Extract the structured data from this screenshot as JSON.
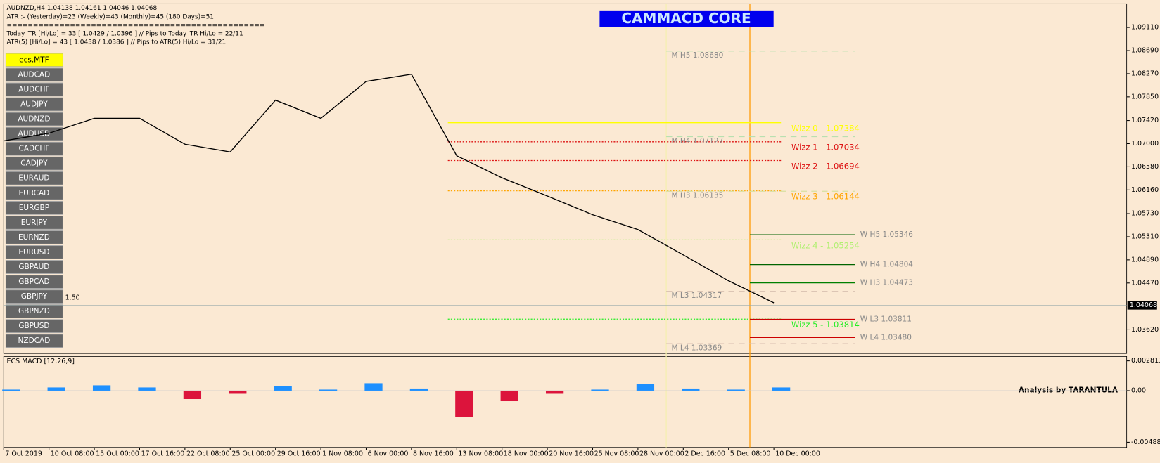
{
  "header": {
    "lines": [
      "AUDNZD,H4  1.04138 1.04161 1.04046 1.04068",
      "ATR :- (Yesterday)=23      (Weekly)=43      (Monthly)=45      (180 Days)=51",
      "=================================================",
      "Today_TR [Hi/Lo] = 33 [ 1.0429 / 1.0396 ]   // Pips to Today_TR Hi/Lo   = 22/11",
      "ATR(5)      [Hi/Lo] = 43 [ 1.0438 / 1.0386 ]   // Pips to ATR(5) Hi/Lo      = 31/21"
    ]
  },
  "title": "CAMMACD CORE",
  "symbols": [
    "ecs.MTF",
    "AUDCAD",
    "AUDCHF",
    "AUDJPY",
    "AUDNZD",
    "AUDUSD",
    "CADCHF",
    "CADJPY",
    "EURAUD",
    "EURCAD",
    "EURGBP",
    "EURJPY",
    "EURNZD",
    "EURUSD",
    "GBPAUD",
    "GBPCAD",
    "GBPJPY",
    "GBPNZD",
    "GBPUSD",
    "NZDCAD"
  ],
  "side_label": "1.50",
  "credit": "Analysis by TARANTULA",
  "chart_data": [
    {
      "type": "line",
      "color": "#000000",
      "categories": [
        "7 Oct 2019",
        "10 Oct 08:00",
        "15 Oct 00:00",
        "17 Oct 16:00",
        "22 Oct 08:00",
        "25 Oct 00:00",
        "29 Oct 16:00",
        "1 Nov 08:00",
        "6 Nov 00:00",
        "8 Nov 16:00",
        "13 Nov 08:00",
        "18 Nov 00:00",
        "20 Nov 16:00",
        "25 Nov 08:00",
        "28 Nov 00:00",
        "2 Dec 16:00",
        "5 Dec 08:00",
        "10 Dec 00:00"
      ],
      "values": [
        1.0705,
        1.0719,
        1.0746,
        1.0746,
        1.0699,
        1.0685,
        1.0779,
        1.0746,
        1.0813,
        1.0826,
        1.0678,
        1.0638,
        1.0605,
        1.0571,
        1.0544,
        1.0498,
        1.0451,
        1.0411
      ],
      "ylim": [
        1.0319,
        1.0954
      ],
      "yticks": [
        {
          "value": 1.0911,
          "label": "1.09110"
        },
        {
          "value": 1.0869,
          "label": "1.08690"
        },
        {
          "value": 1.0827,
          "label": "1.08270"
        },
        {
          "value": 1.0785,
          "label": "1.07850"
        },
        {
          "value": 1.0742,
          "label": "1.07420"
        },
        {
          "value": 1.07,
          "label": "1.07000"
        },
        {
          "value": 1.0658,
          "label": "1.06580"
        },
        {
          "value": 1.0616,
          "label": "1.06160"
        },
        {
          "value": 1.0573,
          "label": "1.05730"
        },
        {
          "value": 1.0531,
          "label": "1.05310"
        },
        {
          "value": 1.0489,
          "label": "1.04890"
        },
        {
          "value": 1.0447,
          "label": "1.04470"
        },
        {
          "value": 1.0362,
          "label": "1.03620"
        }
      ],
      "current_price": 1.04068,
      "levels": [
        {
          "label": "Wizz 0 - 1.07384",
          "value": 1.07384,
          "color": "#ffff00"
        },
        {
          "label": "Wizz 1 - 1.07034",
          "value": 1.07034,
          "color": "#dd1111"
        },
        {
          "label": "Wizz 2 - 1.06694",
          "value": 1.06694,
          "color": "#dd1111"
        },
        {
          "label": "Wizz 3 - 1.06144",
          "value": 1.06144,
          "color": "#ffa500"
        },
        {
          "label": "Wizz 4 - 1.05254",
          "value": 1.05254,
          "color": "#b0f070"
        },
        {
          "label": "Wizz 5 - 1.03814",
          "value": 1.03814,
          "color": "#22ee22"
        }
      ],
      "pivots": [
        {
          "label": "M  H5 1.08680",
          "value": 1.0868,
          "color": "#b8e0b0"
        },
        {
          "label": "M  H4 1.07127",
          "value": 1.07127,
          "color": "#b8e0b0"
        },
        {
          "label": "M  H3 1.06135",
          "value": 1.06135,
          "color": "#d8e0a0"
        },
        {
          "label": "M  L3 1.04317",
          "value": 1.04317,
          "color": "#d8c0b0"
        },
        {
          "label": "M  L4 1.03369",
          "value": 1.03369,
          "color": "#d8c0b0"
        },
        {
          "label": "W  H5 1.05346",
          "value": 1.05346,
          "color": "#006400"
        },
        {
          "label": "W  H4 1.04804",
          "value": 1.04804,
          "color": "#006400"
        },
        {
          "label": "W  H3 1.04473",
          "value": 1.04473,
          "color": "#008000"
        },
        {
          "label": "W  L3 1.03811",
          "value": 1.03811,
          "color": "#cc0000"
        },
        {
          "label": "W  L4 1.03480",
          "value": 1.0348,
          "color": "#cc0000"
        }
      ]
    },
    {
      "type": "bar",
      "title": "ECS MACD [12,26,9]",
      "values": [
        0.0001,
        0.0003,
        0.0005,
        0.0003,
        -0.0008,
        -0.0003,
        0.0004,
        0.0001,
        0.0007,
        0.0002,
        -0.0025,
        -0.001,
        -0.0003,
        0.0001,
        0.0006,
        0.0002,
        0.0001,
        0.0003
      ],
      "positive_color": "#1e90ff",
      "negative_color": "#dc143c",
      "ylim": [
        -0.00537,
        0.00323
      ],
      "yticks": [
        0.002813,
        {
          "value": 0,
          "label": "0.00"
        },
        -0.004881
      ]
    }
  ]
}
